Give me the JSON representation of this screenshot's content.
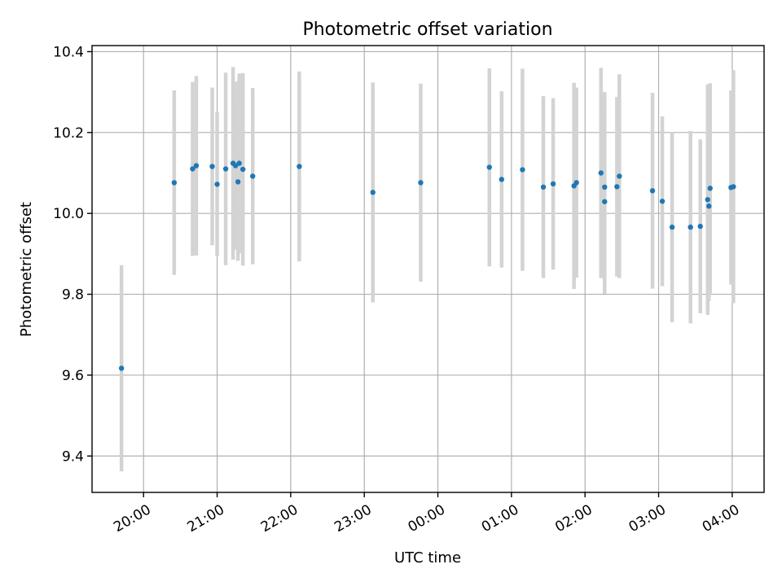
{
  "chart_data": {
    "type": "scatter",
    "title": "Photometric offset variation",
    "xlabel": "UTC time",
    "ylabel": "Photometric offset",
    "x_ticks": [
      "20:00",
      "21:00",
      "22:00",
      "23:00",
      "00:00",
      "01:00",
      "02:00",
      "03:00",
      "04:00"
    ],
    "y_ticks": [
      "9.4",
      "9.6",
      "9.8",
      "10.0",
      "10.2",
      "10.4"
    ],
    "x_range_utc": [
      "19:18",
      "04:26"
    ],
    "ylim": [
      9.31,
      10.415
    ],
    "grid": true,
    "point_color": "#1f77b4",
    "errorbar_color": "#d3d3d3",
    "series": [
      {
        "points": [
          {
            "t": "19:42",
            "y": 9.617,
            "err": 0.255
          },
          {
            "t": "20:25",
            "y": 10.076,
            "err": 0.228
          },
          {
            "t": "20:40",
            "y": 10.11,
            "err": 0.215
          },
          {
            "t": "20:43",
            "y": 10.118,
            "err": 0.222
          },
          {
            "t": "20:56",
            "y": 10.116,
            "err": 0.195
          },
          {
            "t": "21:00",
            "y": 10.072,
            "err": 0.178
          },
          {
            "t": "21:07",
            "y": 10.11,
            "err": 0.238
          },
          {
            "t": "21:13",
            "y": 10.124,
            "err": 0.238
          },
          {
            "t": "21:15",
            "y": 10.118,
            "err": 0.208
          },
          {
            "t": "21:17",
            "y": 10.078,
            "err": 0.195
          },
          {
            "t": "21:18",
            "y": 10.124,
            "err": 0.222
          },
          {
            "t": "21:21",
            "y": 10.109,
            "err": 0.238
          },
          {
            "t": "21:29",
            "y": 10.092,
            "err": 0.218
          },
          {
            "t": "22:07",
            "y": 10.116,
            "err": 0.235
          },
          {
            "t": "23:07",
            "y": 10.052,
            "err": 0.272
          },
          {
            "t": "23:46",
            "y": 10.076,
            "err": 0.245
          },
          {
            "t": "00:42",
            "y": 10.114,
            "err": 0.245
          },
          {
            "t": "00:52",
            "y": 10.084,
            "err": 0.218
          },
          {
            "t": "01:09",
            "y": 10.108,
            "err": 0.25
          },
          {
            "t": "01:26",
            "y": 10.065,
            "err": 0.225
          },
          {
            "t": "01:34",
            "y": 10.073,
            "err": 0.212
          },
          {
            "t": "01:51",
            "y": 10.068,
            "err": 0.255
          },
          {
            "t": "01:53",
            "y": 10.076,
            "err": 0.235
          },
          {
            "t": "02:13",
            "y": 10.1,
            "err": 0.26
          },
          {
            "t": "02:16",
            "y": 10.065,
            "err": 0.235
          },
          {
            "t": "02:16",
            "y": 10.029,
            "err": 0.228
          },
          {
            "t": "02:26",
            "y": 10.066,
            "err": 0.222
          },
          {
            "t": "02:28",
            "y": 10.092,
            "err": 0.252
          },
          {
            "t": "02:55",
            "y": 10.056,
            "err": 0.242
          },
          {
            "t": "03:03",
            "y": 10.03,
            "err": 0.21
          },
          {
            "t": "03:11",
            "y": 9.966,
            "err": 0.235
          },
          {
            "t": "03:26",
            "y": 9.966,
            "err": 0.238
          },
          {
            "t": "03:34",
            "y": 9.968,
            "err": 0.215
          },
          {
            "t": "03:40",
            "y": 10.034,
            "err": 0.285
          },
          {
            "t": "03:41",
            "y": 10.018,
            "err": 0.235
          },
          {
            "t": "03:42",
            "y": 10.062,
            "err": 0.26
          },
          {
            "t": "03:59",
            "y": 10.064,
            "err": 0.24
          },
          {
            "t": "04:01",
            "y": 10.066,
            "err": 0.288
          }
        ]
      }
    ]
  }
}
